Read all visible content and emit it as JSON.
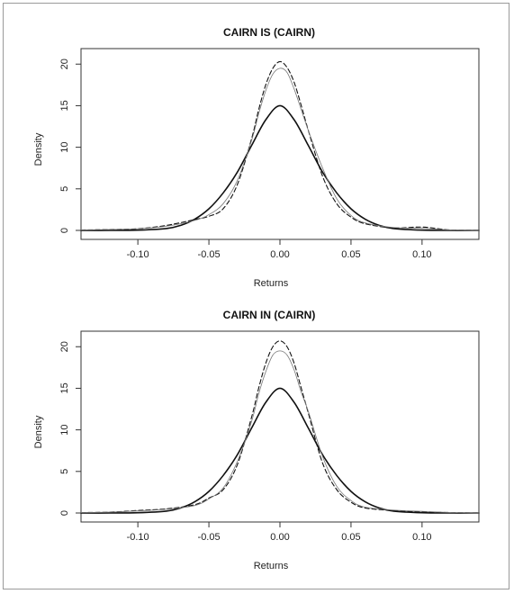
{
  "chart_data": [
    {
      "type": "line",
      "title": "CAIRN IS (CAIRN)",
      "xlabel": "Returns",
      "ylabel": "Density",
      "xlim": [
        -0.14,
        0.14
      ],
      "ylim": [
        0,
        21
      ],
      "xticks": [
        "-0.10",
        "-0.05",
        "0.00",
        "0.05",
        "0.10"
      ],
      "yticks": [
        "0",
        "5",
        "10",
        "15",
        "20"
      ],
      "grid": false,
      "legend": "none",
      "series": [
        {
          "style": "solid-thick",
          "x": [
            -0.14,
            -0.12,
            -0.1,
            -0.08,
            -0.07,
            -0.06,
            -0.05,
            -0.04,
            -0.03,
            -0.02,
            -0.01,
            0.0,
            0.01,
            0.02,
            0.03,
            0.04,
            0.05,
            0.06,
            0.07,
            0.08,
            0.1,
            0.12,
            0.14
          ],
          "y": [
            0.0,
            0.0,
            0.03,
            0.22,
            0.6,
            1.35,
            2.6,
            4.5,
            7.0,
            10.2,
            13.3,
            15.0,
            13.3,
            10.2,
            7.0,
            4.5,
            2.6,
            1.35,
            0.6,
            0.22,
            0.03,
            0.0,
            0.0
          ]
        },
        {
          "style": "dashed",
          "x": [
            -0.14,
            -0.12,
            -0.1,
            -0.08,
            -0.06,
            -0.05,
            -0.04,
            -0.03,
            -0.02,
            -0.015,
            -0.01,
            -0.005,
            0.0,
            0.005,
            0.01,
            0.015,
            0.02,
            0.03,
            0.04,
            0.05,
            0.06,
            0.08,
            0.1,
            0.12,
            0.14
          ],
          "y": [
            0.05,
            0.1,
            0.2,
            0.6,
            1.3,
            1.7,
            2.6,
            5.5,
            11.0,
            14.5,
            17.5,
            19.5,
            20.3,
            19.6,
            17.8,
            15.0,
            12.0,
            6.5,
            3.2,
            1.6,
            0.8,
            0.3,
            0.4,
            0.05,
            0.0
          ]
        },
        {
          "style": "thin",
          "x": [
            -0.14,
            -0.12,
            -0.1,
            -0.08,
            -0.06,
            -0.05,
            -0.04,
            -0.03,
            -0.02,
            -0.015,
            -0.01,
            -0.005,
            0.0,
            0.005,
            0.01,
            0.015,
            0.02,
            0.03,
            0.04,
            0.05,
            0.06,
            0.08,
            0.1,
            0.12,
            0.14
          ],
          "y": [
            0.05,
            0.1,
            0.2,
            0.5,
            1.2,
            1.9,
            3.2,
            6.0,
            10.8,
            14.0,
            16.8,
            18.8,
            19.5,
            19.0,
            17.0,
            14.5,
            12.0,
            7.5,
            3.8,
            1.8,
            0.9,
            0.35,
            0.25,
            0.05,
            0.0
          ]
        }
      ]
    },
    {
      "type": "line",
      "title": "CAIRN IN (CAIRN)",
      "xlabel": "Returns",
      "ylabel": "Density",
      "xlim": [
        -0.14,
        0.14
      ],
      "ylim": [
        0,
        21
      ],
      "xticks": [
        "-0.10",
        "-0.05",
        "0.00",
        "0.05",
        "0.10"
      ],
      "yticks": [
        "0",
        "5",
        "10",
        "15",
        "20"
      ],
      "grid": false,
      "legend": "none",
      "series": [
        {
          "style": "solid-thick",
          "x": [
            -0.14,
            -0.12,
            -0.1,
            -0.08,
            -0.07,
            -0.06,
            -0.05,
            -0.04,
            -0.03,
            -0.02,
            -0.01,
            0.0,
            0.01,
            0.02,
            0.03,
            0.04,
            0.05,
            0.06,
            0.07,
            0.08,
            0.1,
            0.12,
            0.14
          ],
          "y": [
            0.0,
            0.0,
            0.03,
            0.22,
            0.6,
            1.35,
            2.6,
            4.5,
            7.0,
            10.2,
            13.3,
            15.0,
            13.3,
            10.2,
            7.0,
            4.5,
            2.6,
            1.35,
            0.6,
            0.22,
            0.03,
            0.0,
            0.0
          ]
        },
        {
          "style": "dashed",
          "x": [
            -0.14,
            -0.12,
            -0.1,
            -0.08,
            -0.06,
            -0.05,
            -0.04,
            -0.03,
            -0.02,
            -0.015,
            -0.01,
            -0.005,
            0.0,
            0.005,
            0.01,
            0.015,
            0.02,
            0.03,
            0.04,
            0.05,
            0.06,
            0.08,
            0.1,
            0.12,
            0.14
          ],
          "y": [
            0.05,
            0.1,
            0.3,
            0.5,
            1.0,
            1.8,
            2.8,
            5.8,
            11.5,
            15.0,
            18.0,
            20.0,
            20.7,
            20.0,
            18.0,
            15.0,
            12.0,
            6.0,
            2.8,
            1.3,
            0.6,
            0.3,
            0.15,
            0.05,
            0.0
          ]
        },
        {
          "style": "thin",
          "x": [
            -0.14,
            -0.12,
            -0.1,
            -0.08,
            -0.06,
            -0.05,
            -0.04,
            -0.03,
            -0.02,
            -0.015,
            -0.01,
            -0.005,
            0.0,
            0.005,
            0.01,
            0.015,
            0.02,
            0.03,
            0.04,
            0.05,
            0.06,
            0.08,
            0.1,
            0.12,
            0.14
          ],
          "y": [
            0.05,
            0.1,
            0.25,
            0.45,
            0.9,
            1.7,
            3.0,
            6.2,
            11.0,
            14.3,
            17.0,
            19.0,
            19.5,
            19.0,
            17.2,
            14.5,
            12.2,
            6.8,
            3.2,
            1.5,
            0.7,
            0.35,
            0.2,
            0.05,
            0.0
          ]
        }
      ]
    }
  ]
}
